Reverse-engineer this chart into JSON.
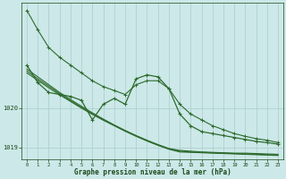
{
  "bg_color": "#cce8e8",
  "plot_bg_color": "#cce8e8",
  "grid_color": "#aacccc",
  "line_color": "#2d6b2d",
  "xlabel": "Graphe pression niveau de la mer (hPa)",
  "xlabel_color": "#1a4a1a",
  "tick_color": "#1a4a1a",
  "ylim": [
    1018.7,
    1022.7
  ],
  "xlim": [
    -0.5,
    23.5
  ],
  "yticks": [
    1019,
    1020
  ],
  "xticks": [
    0,
    1,
    2,
    3,
    4,
    5,
    6,
    7,
    8,
    9,
    10,
    11,
    12,
    13,
    14,
    15,
    16,
    17,
    18,
    19,
    20,
    21,
    22,
    23
  ],
  "series": {
    "top_line": [
      1022.5,
      1022.0,
      1021.55,
      1021.3,
      1021.1,
      1020.9,
      1020.7,
      1020.55,
      1020.45,
      1020.35,
      1020.6,
      1020.7,
      1020.7,
      1020.5,
      1020.1,
      1019.85,
      1019.7,
      1019.55,
      1019.45,
      1019.35,
      1019.28,
      1019.22,
      1019.18,
      1019.12
    ],
    "main": [
      1021.1,
      1020.65,
      1020.4,
      1020.35,
      1020.3,
      1020.2,
      1019.7,
      1020.1,
      1020.25,
      1020.1,
      1020.75,
      1020.85,
      1020.8,
      1020.5,
      1019.85,
      1019.55,
      1019.4,
      1019.35,
      1019.3,
      1019.25,
      1019.2,
      1019.15,
      1019.12,
      1019.08
    ],
    "trend1": [
      1021.0,
      1020.8,
      1020.6,
      1020.4,
      1020.22,
      1020.05,
      1019.88,
      1019.72,
      1019.57,
      1019.43,
      1019.3,
      1019.18,
      1019.07,
      1018.97,
      1018.92,
      1018.9,
      1018.88,
      1018.87,
      1018.86,
      1018.85,
      1018.85,
      1018.84,
      1018.83,
      1018.82
    ],
    "trend2": [
      1020.95,
      1020.75,
      1020.56,
      1020.37,
      1020.19,
      1020.02,
      1019.86,
      1019.71,
      1019.56,
      1019.42,
      1019.29,
      1019.17,
      1019.06,
      1018.96,
      1018.9,
      1018.88,
      1018.87,
      1018.86,
      1018.85,
      1018.84,
      1018.83,
      1018.82,
      1018.81,
      1018.8
    ],
    "trend3": [
      1020.9,
      1020.71,
      1020.52,
      1020.34,
      1020.17,
      1020.0,
      1019.84,
      1019.69,
      1019.55,
      1019.41,
      1019.28,
      1019.16,
      1019.05,
      1018.95,
      1018.88,
      1018.87,
      1018.86,
      1018.85,
      1018.84,
      1018.83,
      1018.82,
      1018.81,
      1018.8,
      1018.79
    ]
  }
}
